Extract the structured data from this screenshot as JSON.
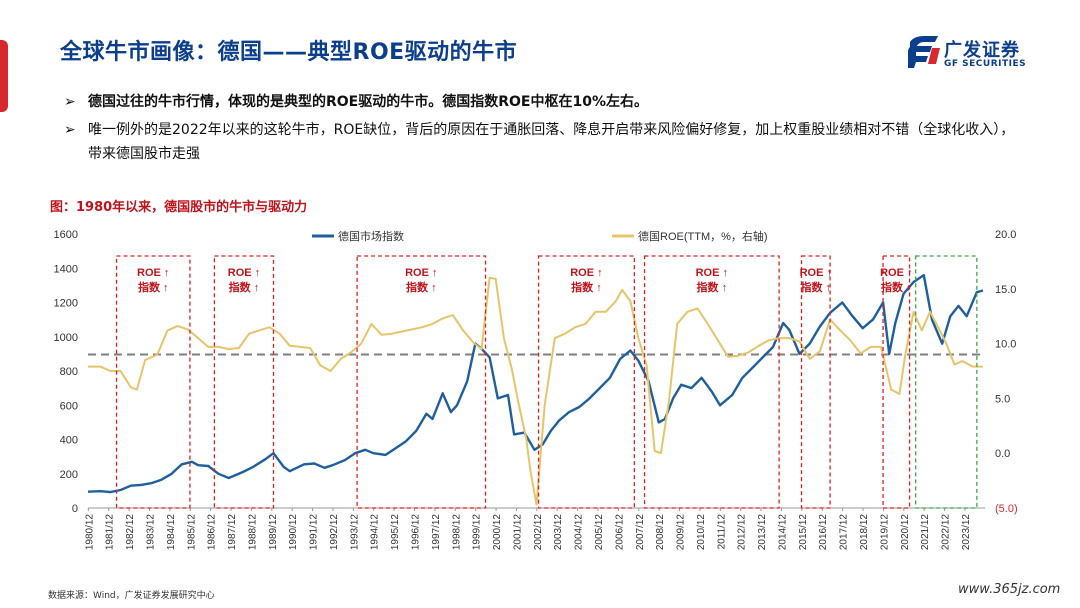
{
  "page": {
    "title": "全球牛市画像：德国——典型ROE驱动的牛市",
    "logo_cn": "广发证券",
    "logo_en": "GF SECURITIES",
    "bullets": [
      "德国过往的牛市行情，体现的是典型的ROE驱动的牛市。德国指数ROE中枢在10%左右。",
      "唯一例外的是2022年以来的这轮牛市，ROE缺位，背后的原因在于通胀回落、降息开启带来风险偏好修复，加上权重股业绩相对不错（全球化收入），带来德国股市走强"
    ],
    "bullet_marker": "➢",
    "chart_title": "图：1980年以来，德国股市的牛市与驱动力",
    "source": "数据来源：Wind，广发证券发展研究中心",
    "watermark": "www.365jz.com"
  },
  "colors": {
    "brand": "#0b3e8c",
    "accent": "#d7282f",
    "index_line": "#1f5f9e",
    "roe_line": "#e6c46a",
    "bull_box": "#e02020",
    "current_box": "#3aa84a",
    "mean_line": "#7f7f7f"
  },
  "chart_data": {
    "type": "line",
    "legend": [
      "德国市场指数",
      "德国ROE(TTM，%，右轴)"
    ],
    "legend_placement": "top-center",
    "x_tick_labels": [
      "1980/12",
      "1981/12",
      "1982/12",
      "1983/12",
      "1984/12",
      "1985/12",
      "1986/12",
      "1987/12",
      "1988/12",
      "1989/12",
      "1990/12",
      "1991/12",
      "1992/12",
      "1993/12",
      "1994/12",
      "1995/12",
      "1996/12",
      "1997/12",
      "1998/12",
      "1999/12",
      "2000/12",
      "2001/12",
      "2002/12",
      "2003/12",
      "2004/12",
      "2005/12",
      "2006/12",
      "2007/12",
      "2008/12",
      "2009/12",
      "2010/12",
      "2011/12",
      "2012/12",
      "2013/12",
      "2014/12",
      "2015/12",
      "2016/12",
      "2017/12",
      "2018/12",
      "2019/12",
      "2020/12",
      "2021/12",
      "2022/12",
      "2023/12"
    ],
    "xlim": [
      1980.9,
      2024.9
    ],
    "y_left": {
      "ylim": [
        0,
        1600
      ],
      "ticks": [
        "0",
        "200",
        "400",
        "600",
        "800",
        "1000",
        "1200",
        "1400",
        "1600"
      ]
    },
    "y_right": {
      "ylim": [
        -5,
        20
      ],
      "ticks": [
        "(5.0)",
        "0.0",
        "5.0",
        "10.0",
        "15.0",
        "20.0"
      ]
    },
    "mean_line_right": 9.0,
    "series": [
      {
        "name": "德国市场指数",
        "axis": "left",
        "x": [
          1980.9,
          1981.5,
          1982.0,
          1982.5,
          1983.0,
          1983.5,
          1984.0,
          1984.5,
          1985.0,
          1985.5,
          1986.0,
          1986.3,
          1986.8,
          1987.3,
          1987.8,
          1988.5,
          1989.0,
          1989.6,
          1990.0,
          1990.5,
          1990.8,
          1991.5,
          1992.0,
          1992.5,
          1992.9,
          1993.5,
          1994.0,
          1994.5,
          1994.9,
          1995.5,
          1996.0,
          1996.5,
          1997.0,
          1997.5,
          1997.8,
          1998.3,
          1998.7,
          1999.0,
          1999.5,
          1999.9,
          2000.2,
          2000.6,
          2001.0,
          2001.5,
          2001.8,
          2002.3,
          2002.8,
          2003.2,
          2003.6,
          2004.0,
          2004.5,
          2005.0,
          2005.5,
          2006.0,
          2006.5,
          2007.0,
          2007.5,
          2007.9,
          2008.4,
          2008.9,
          2009.2,
          2009.6,
          2010.0,
          2010.5,
          2011.0,
          2011.5,
          2011.9,
          2012.5,
          2013.0,
          2013.5,
          2014.0,
          2014.5,
          2015.0,
          2015.3,
          2015.8,
          2016.3,
          2016.8,
          2017.3,
          2017.9,
          2018.4,
          2018.9,
          2019.4,
          2019.9,
          2020.2,
          2020.5,
          2020.9,
          2021.4,
          2021.9,
          2022.3,
          2022.8,
          2023.2,
          2023.6,
          2024.0,
          2024.5,
          2024.8
        ],
        "y": [
          95,
          98,
          93,
          105,
          130,
          135,
          145,
          165,
          200,
          255,
          270,
          250,
          245,
          200,
          175,
          210,
          240,
          285,
          320,
          240,
          215,
          255,
          260,
          235,
          250,
          280,
          320,
          340,
          320,
          310,
          350,
          390,
          450,
          550,
          520,
          670,
          560,
          600,
          740,
          960,
          930,
          880,
          640,
          660,
          430,
          440,
          340,
          370,
          450,
          510,
          560,
          590,
          640,
          700,
          760,
          870,
          920,
          860,
          740,
          500,
          520,
          640,
          720,
          700,
          760,
          680,
          600,
          660,
          760,
          820,
          880,
          940,
          1080,
          1040,
          900,
          960,
          1060,
          1140,
          1200,
          1120,
          1050,
          1100,
          1200,
          900,
          1080,
          1250,
          1320,
          1360,
          1100,
          960,
          1120,
          1180,
          1120,
          1260,
          1270
        ]
      },
      {
        "name": "德国ROE(TTM，%，右轴)",
        "axis": "right",
        "x": [
          1980.9,
          1981.5,
          1982.0,
          1982.5,
          1983.0,
          1983.3,
          1983.7,
          1984.3,
          1984.8,
          1985.3,
          1985.8,
          1986.3,
          1986.8,
          1987.3,
          1987.8,
          1988.3,
          1988.8,
          1989.3,
          1989.8,
          1990.3,
          1990.8,
          1991.3,
          1991.8,
          1992.3,
          1992.8,
          1993.3,
          1993.8,
          1994.3,
          1994.8,
          1995.3,
          1995.8,
          1996.3,
          1996.8,
          1997.3,
          1997.8,
          1998.3,
          1998.8,
          1999.3,
          1999.8,
          2000.2,
          2000.6,
          2000.9,
          2001.3,
          2001.7,
          2002.0,
          2002.4,
          2002.6,
          2002.9,
          2003.3,
          2003.8,
          2004.3,
          2004.8,
          2005.3,
          2005.8,
          2006.3,
          2006.8,
          2007.1,
          2007.5,
          2007.9,
          2008.3,
          2008.7,
          2009.0,
          2009.4,
          2009.8,
          2010.3,
          2010.8,
          2011.3,
          2011.8,
          2012.3,
          2012.8,
          2013.3,
          2013.8,
          2014.3,
          2014.8,
          2015.3,
          2015.8,
          2016.3,
          2016.8,
          2017.3,
          2017.8,
          2018.3,
          2018.8,
          2019.3,
          2019.8,
          2020.3,
          2020.7,
          2021.0,
          2021.4,
          2021.8,
          2022.2,
          2022.6,
          2023.0,
          2023.4,
          2023.8,
          2024.3,
          2024.8
        ],
        "y": [
          7.9,
          7.9,
          7.5,
          7.5,
          6.0,
          5.8,
          8.5,
          9.0,
          11.2,
          11.6,
          11.3,
          10.5,
          9.7,
          9.7,
          9.5,
          9.6,
          10.9,
          11.2,
          11.5,
          10.9,
          9.8,
          9.7,
          9.6,
          8.0,
          7.5,
          8.6,
          9.2,
          10.0,
          11.8,
          10.8,
          10.9,
          11.1,
          11.3,
          11.5,
          11.8,
          12.3,
          12.6,
          11.2,
          10.1,
          9.5,
          16.0,
          15.9,
          10.5,
          7.6,
          4.7,
          1.3,
          -1.6,
          -4.7,
          4.4,
          10.5,
          10.9,
          11.5,
          11.8,
          12.9,
          12.9,
          13.9,
          14.9,
          13.9,
          10.5,
          8.0,
          0.2,
          0.0,
          4.8,
          11.8,
          12.9,
          13.2,
          11.8,
          10.3,
          8.8,
          8.9,
          9.2,
          9.8,
          10.3,
          10.5,
          10.5,
          10.2,
          8.6,
          9.3,
          12.2,
          11.2,
          10.3,
          9.1,
          9.7,
          9.7,
          5.8,
          5.4,
          9.1,
          12.9,
          11.2,
          12.9,
          11.5,
          10.0,
          8.1,
          8.4,
          7.9,
          7.9
        ]
      }
    ],
    "bull_regimes": [
      {
        "start": 1982.3,
        "end": 1985.9,
        "labels": [
          "ROE ↑",
          "指数 ↑"
        ]
      },
      {
        "start": 1987.1,
        "end": 1990.0,
        "labels": [
          "ROE ↑",
          "指数 ↑"
        ]
      },
      {
        "start": 1994.1,
        "end": 2000.4,
        "labels": [
          "ROE ↑",
          "指数 ↑"
        ]
      },
      {
        "start": 2003.0,
        "end": 2007.7,
        "labels": [
          "ROE ↑",
          "指数 ↑"
        ]
      },
      {
        "start": 2008.2,
        "end": 2014.8,
        "labels": [
          "ROE ↑",
          "指数 ↑"
        ]
      },
      {
        "start": 2015.9,
        "end": 2017.3,
        "labels": [
          "ROE ↑",
          "指数 ↑"
        ]
      },
      {
        "start": 2019.9,
        "end": 2021.2,
        "labels": [
          "ROE ↑",
          "指数 ↑"
        ]
      }
    ],
    "current_regime": {
      "start": 2021.5,
      "end": 2024.5
    }
  }
}
